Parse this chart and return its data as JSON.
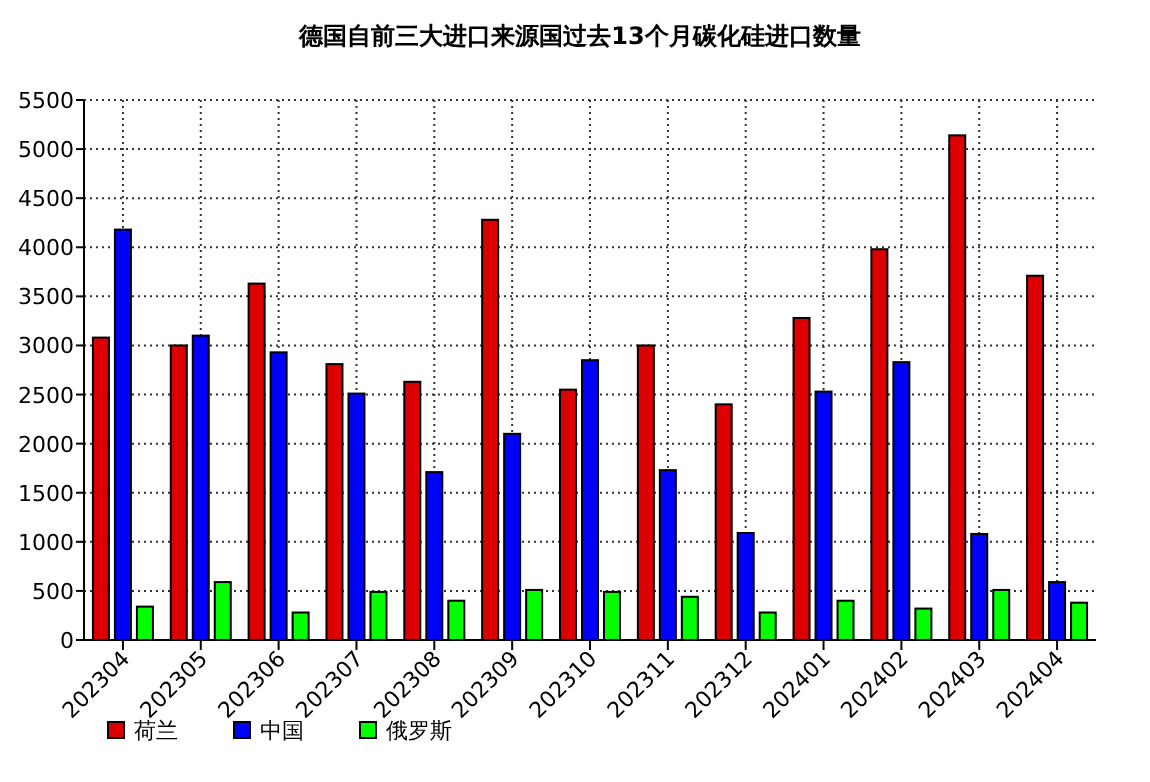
{
  "chart_data": {
    "type": "bar",
    "title": "德国自前三大进口来源国过去13个月碳化硅进口数量",
    "categories": [
      "202304",
      "202305",
      "202306",
      "202307",
      "202308",
      "202309",
      "202310",
      "202311",
      "202312",
      "202401",
      "202402",
      "202403",
      "202404"
    ],
    "series": [
      {
        "name": "荷兰",
        "color": "#dd0000",
        "values": [
          3080,
          3000,
          3630,
          2810,
          2630,
          4280,
          2550,
          3000,
          2400,
          3280,
          3980,
          5140,
          3710
        ]
      },
      {
        "name": "中国",
        "color": "#0000ff",
        "values": [
          4180,
          3100,
          2930,
          2510,
          1710,
          2100,
          2850,
          1730,
          1090,
          2530,
          2830,
          1080,
          590
        ]
      },
      {
        "name": "俄罗斯",
        "color": "#00ff00",
        "values": [
          340,
          590,
          280,
          490,
          400,
          510,
          490,
          440,
          280,
          400,
          320,
          510,
          380
        ]
      }
    ],
    "ylim": [
      0,
      5500
    ],
    "yticks": [
      0,
      500,
      1000,
      1500,
      2000,
      2500,
      3000,
      3500,
      4000,
      4500,
      5000,
      5500
    ],
    "grid": true,
    "legend": "bottom"
  }
}
